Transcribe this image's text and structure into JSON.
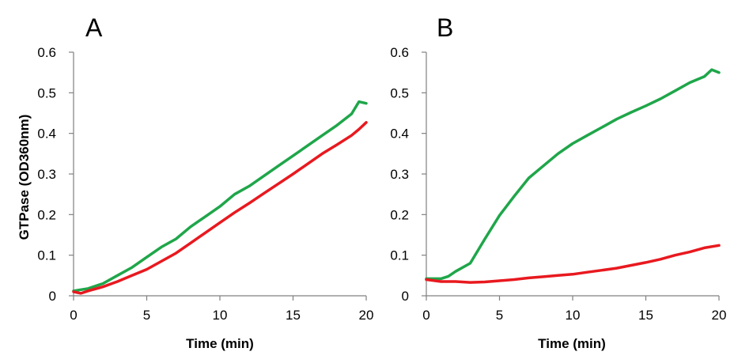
{
  "colors": {
    "green": "#1fa64a",
    "red": "#e8191f"
  },
  "chart_data": [
    {
      "type": "line",
      "panel_label": "A",
      "title": "",
      "xlabel": "Time (min)",
      "ylabel": "GTPase (OD360nm)",
      "xlim": [
        0,
        20
      ],
      "ylim": [
        0,
        0.6
      ],
      "xticks": [
        0,
        5,
        10,
        15,
        20
      ],
      "yticks": [
        0,
        0.1,
        0.2,
        0.3,
        0.4,
        0.5,
        0.6
      ],
      "xtick_labels": [
        "0",
        "5",
        "10",
        "15",
        "20"
      ],
      "ytick_labels": [
        "0",
        "0.1",
        "0.2",
        "0.3",
        "0.4",
        "0.5",
        "0.6"
      ],
      "grid": false,
      "legend": "none",
      "series": [
        {
          "color": "#1fa64a",
          "x": [
            0,
            1,
            2,
            3,
            4,
            5,
            6,
            7,
            8,
            9,
            10,
            11,
            12,
            13,
            14,
            15,
            16,
            17,
            18,
            19,
            19.5,
            20
          ],
          "y": [
            0.012,
            0.018,
            0.03,
            0.05,
            0.07,
            0.095,
            0.12,
            0.14,
            0.17,
            0.195,
            0.22,
            0.25,
            0.27,
            0.295,
            0.32,
            0.345,
            0.37,
            0.395,
            0.42,
            0.448,
            0.478,
            0.474
          ]
        },
        {
          "color": "#e8191f",
          "x": [
            0,
            0.5,
            1,
            2,
            3,
            4,
            5,
            6,
            7,
            8,
            9,
            10,
            11,
            12,
            13,
            14,
            15,
            16,
            17,
            18,
            19,
            19.5,
            20
          ],
          "y": [
            0.01,
            0.006,
            0.012,
            0.022,
            0.035,
            0.05,
            0.065,
            0.085,
            0.105,
            0.13,
            0.155,
            0.18,
            0.205,
            0.228,
            0.252,
            0.276,
            0.3,
            0.325,
            0.35,
            0.372,
            0.395,
            0.41,
            0.427
          ]
        }
      ]
    },
    {
      "type": "line",
      "panel_label": "B",
      "title": "",
      "xlabel": "Time (min)",
      "ylabel": "",
      "xlim": [
        0,
        20
      ],
      "ylim": [
        0,
        0.6
      ],
      "xticks": [
        0,
        5,
        10,
        15,
        20
      ],
      "yticks": [
        0,
        0.1,
        0.2,
        0.3,
        0.4,
        0.5,
        0.6
      ],
      "xtick_labels": [
        "0",
        "5",
        "10",
        "15",
        "20"
      ],
      "ytick_labels": [
        "0",
        "0.1",
        "0.2",
        "0.3",
        "0.4",
        "0.5",
        "0.6"
      ],
      "grid": false,
      "legend": "none",
      "series": [
        {
          "color": "#1fa64a",
          "x": [
            0,
            1,
            1.5,
            2,
            3,
            4,
            5,
            6,
            7,
            8,
            9,
            10,
            11,
            12,
            13,
            14,
            15,
            16,
            17,
            18,
            19,
            19.5,
            20
          ],
          "y": [
            0.042,
            0.042,
            0.048,
            0.06,
            0.08,
            0.14,
            0.198,
            0.245,
            0.29,
            0.32,
            0.35,
            0.375,
            0.395,
            0.415,
            0.435,
            0.452,
            0.468,
            0.485,
            0.505,
            0.525,
            0.54,
            0.557,
            0.55
          ]
        },
        {
          "color": "#e8191f",
          "x": [
            0,
            1,
            2,
            3,
            4,
            5,
            6,
            7,
            8,
            9,
            10,
            11,
            12,
            13,
            14,
            15,
            16,
            17,
            18,
            19,
            20
          ],
          "y": [
            0.04,
            0.035,
            0.035,
            0.033,
            0.034,
            0.037,
            0.04,
            0.044,
            0.047,
            0.05,
            0.053,
            0.058,
            0.063,
            0.068,
            0.075,
            0.082,
            0.09,
            0.1,
            0.108,
            0.118,
            0.124
          ]
        }
      ]
    }
  ]
}
